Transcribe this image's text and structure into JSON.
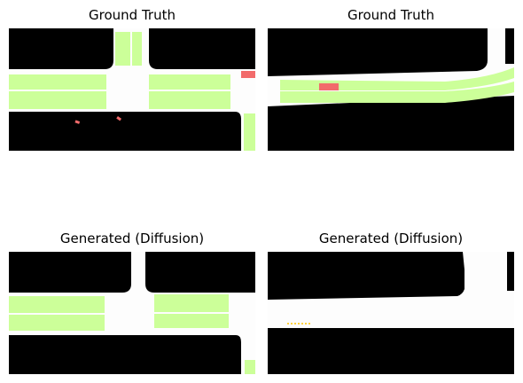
{
  "panels": [
    {
      "title": "Ground Truth"
    },
    {
      "title": "Ground Truth"
    },
    {
      "title": "Generated (Diffusion)"
    },
    {
      "title": "Generated (Diffusion)"
    }
  ],
  "colors": {
    "background": "#000000",
    "road": "#fdfdfd",
    "lane": "#ccff99",
    "vehicle": "#f26b6b",
    "dashed-marker": "#ffd23f"
  }
}
